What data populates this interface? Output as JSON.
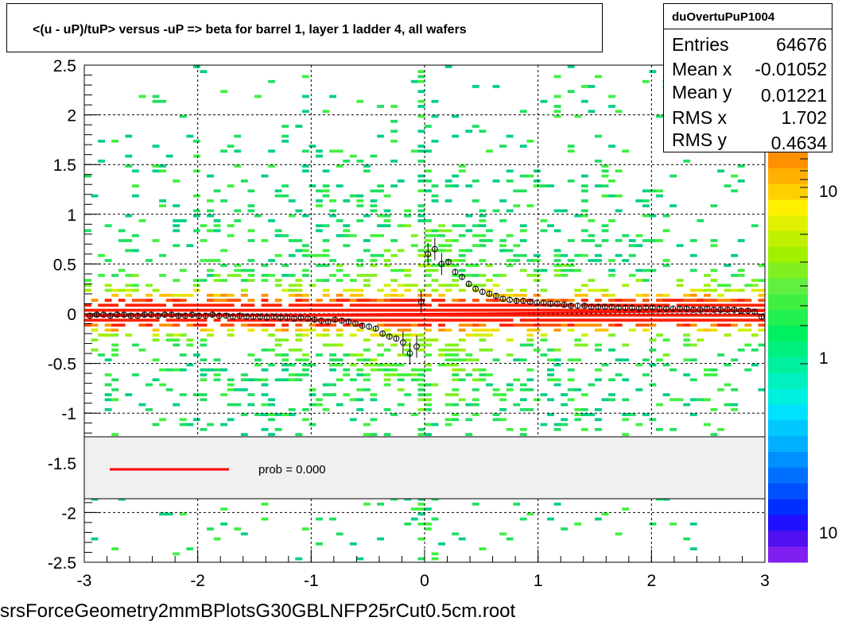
{
  "title": "<(u - uP)/tuP> versus  -uP => beta for barrel 1, layer 1 ladder 4, all wafers",
  "file_label": "srsForceGeometry2mmBPlotsG30GBLNFP25rCut0.5cm.root",
  "stats": {
    "name": "duOvertuPuP1004",
    "rows": [
      {
        "label": "Entries",
        "value": "64676"
      },
      {
        "label": "Mean x",
        "value": "-0.01052"
      },
      {
        "label": "Mean y",
        "value": "0.01221"
      },
      {
        "label": "RMS x",
        "value": "1.702"
      },
      {
        "label": "RMS y",
        "value": "0.4634"
      }
    ]
  },
  "legend": {
    "fit_label": "prob = 0.000",
    "fit_color": "#ff0000"
  },
  "chart_data": {
    "type": "heatmap",
    "title": "<(u - uP)/tuP> versus  -uP => beta for barrel 1, layer 1 ladder 4, all wafers",
    "xlabel": "",
    "ylabel": "",
    "xlim": [
      -3,
      3
    ],
    "ylim": [
      -2.5,
      2.5
    ],
    "x_ticks": [
      -3,
      -2,
      -1,
      0,
      1,
      2,
      3
    ],
    "y_ticks": [
      -2.5,
      -2,
      -1.5,
      -1,
      -0.5,
      0,
      0.5,
      1,
      1.5,
      2,
      2.5
    ],
    "grid": true,
    "colorbar_labels": [
      "10",
      "1",
      "10"
    ],
    "fit_line": {
      "y0": 0.0,
      "slope": 0.0085,
      "color": "#ff0000"
    },
    "profile": {
      "x": [
        -2.95,
        -2.89,
        -2.83,
        -2.77,
        -2.71,
        -2.65,
        -2.59,
        -2.53,
        -2.47,
        -2.41,
        -2.35,
        -2.29,
        -2.23,
        -2.17,
        -2.11,
        -2.05,
        -1.99,
        -1.93,
        -1.87,
        -1.81,
        -1.75,
        -1.69,
        -1.63,
        -1.57,
        -1.51,
        -1.45,
        -1.39,
        -1.33,
        -1.27,
        -1.21,
        -1.15,
        -1.09,
        -1.03,
        -0.97,
        -0.91,
        -0.85,
        -0.79,
        -0.73,
        -0.67,
        -0.61,
        -0.55,
        -0.49,
        -0.43,
        -0.37,
        -0.31,
        -0.25,
        -0.19,
        -0.13,
        -0.07,
        -0.03,
        0.03,
        0.09,
        0.15,
        0.21,
        0.27,
        0.33,
        0.39,
        0.45,
        0.51,
        0.57,
        0.63,
        0.69,
        0.75,
        0.81,
        0.87,
        0.93,
        0.99,
        1.05,
        1.11,
        1.17,
        1.23,
        1.29,
        1.35,
        1.41,
        1.47,
        1.53,
        1.59,
        1.65,
        1.71,
        1.77,
        1.83,
        1.89,
        1.95,
        2.01,
        2.07,
        2.13,
        2.19,
        2.25,
        2.31,
        2.37,
        2.43,
        2.49,
        2.55,
        2.61,
        2.67,
        2.73,
        2.79,
        2.85,
        2.91,
        2.97
      ],
      "y": [
        -0.02,
        -0.01,
        -0.01,
        -0.02,
        -0.01,
        -0.01,
        -0.02,
        -0.02,
        -0.01,
        -0.01,
        -0.02,
        -0.01,
        -0.01,
        -0.02,
        -0.02,
        -0.01,
        -0.02,
        -0.02,
        -0.01,
        -0.02,
        -0.02,
        -0.03,
        -0.02,
        -0.03,
        -0.03,
        -0.03,
        -0.04,
        -0.03,
        -0.04,
        -0.04,
        -0.05,
        -0.04,
        -0.05,
        -0.06,
        -0.07,
        -0.08,
        -0.06,
        -0.07,
        -0.08,
        -0.1,
        -0.12,
        -0.13,
        -0.15,
        -0.2,
        -0.23,
        -0.25,
        -0.29,
        -0.4,
        -0.33,
        0.12,
        0.6,
        0.65,
        0.5,
        0.52,
        0.42,
        0.37,
        0.3,
        0.25,
        0.22,
        0.2,
        0.18,
        0.15,
        0.14,
        0.13,
        0.13,
        0.12,
        0.11,
        0.11,
        0.1,
        0.1,
        0.09,
        0.08,
        0.08,
        0.08,
        0.07,
        0.07,
        0.07,
        0.07,
        0.06,
        0.06,
        0.06,
        0.05,
        0.06,
        0.06,
        0.05,
        0.05,
        0.05,
        0.05,
        0.05,
        0.04,
        0.04,
        0.05,
        0.04,
        0.04,
        0.04,
        0.04,
        0.03,
        0.03,
        0.02,
        -0.03
      ]
    }
  }
}
